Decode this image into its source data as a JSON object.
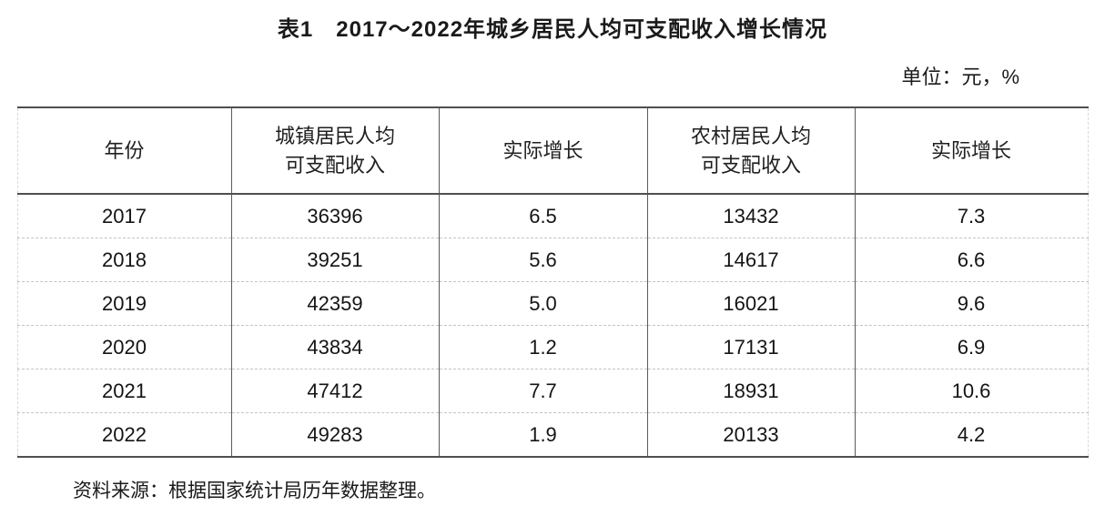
{
  "page": {
    "title": "表1　2017～2022年城乡居民人均可支配收入增长情况",
    "unit_label": "单位：元，%",
    "source_note": "资料来源：根据国家统计局历年数据整理。"
  },
  "table": {
    "headers": [
      "年份",
      "城镇居民人均\n可支配收入",
      "实际增长",
      "农村居民人均\n可支配收入",
      "实际增长"
    ],
    "rows": [
      [
        "2017",
        "36396",
        "6.5",
        "13432",
        "7.3"
      ],
      [
        "2018",
        "39251",
        "5.6",
        "14617",
        "6.6"
      ],
      [
        "2019",
        "42359",
        "5.0",
        "16021",
        "9.6"
      ],
      [
        "2020",
        "43834",
        "1.2",
        "17131",
        "6.9"
      ],
      [
        "2021",
        "47412",
        "7.7",
        "18931",
        "10.6"
      ],
      [
        "2022",
        "49283",
        "1.9",
        "20133",
        "4.2"
      ]
    ]
  },
  "chart_data": {
    "type": "table",
    "title": "表1 2017～2022年城乡居民人均可支配收入增长情况",
    "unit": "单位：元，%",
    "columns": [
      "年份",
      "城镇居民人均可支配收入",
      "实际增长",
      "农村居民人均可支配收入",
      "实际增长"
    ],
    "rows": [
      [
        2017,
        36396,
        6.5,
        13432,
        7.3
      ],
      [
        2018,
        39251,
        5.6,
        14617,
        6.6
      ],
      [
        2019,
        42359,
        5.0,
        16021,
        9.6
      ],
      [
        2020,
        43834,
        1.2,
        17131,
        6.9
      ],
      [
        2021,
        47412,
        7.7,
        18931,
        10.6
      ],
      [
        2022,
        49283,
        1.9,
        20133,
        4.2
      ]
    ],
    "source": "资料来源：根据国家统计局历年数据整理。"
  }
}
